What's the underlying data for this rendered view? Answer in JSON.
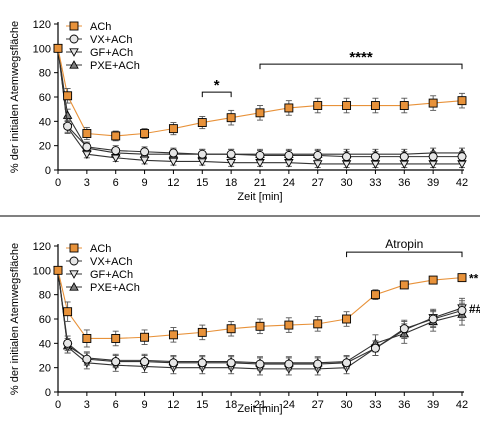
{
  "colors": {
    "ach": "#E8923A",
    "gray_fill": "#E6E6E6",
    "dark_fill": "#808080",
    "error": "#555555"
  },
  "chart_data": [
    {
      "type": "line",
      "xlabel": "Zeit [min]",
      "ylabel": "% der initialen Atemwegsfläche",
      "xlim": [
        0,
        42
      ],
      "ylim": [
        0,
        120
      ],
      "xticks": [
        "0",
        "3",
        "6",
        "9",
        "12",
        "15",
        "18",
        "21",
        "24",
        "27",
        "30",
        "33",
        "36",
        "39",
        "42"
      ],
      "yticks": [
        "0",
        "20",
        "40",
        "60",
        "80",
        "100",
        "120"
      ],
      "legend_position": "top-left",
      "x": [
        0,
        1,
        3,
        6,
        9,
        12,
        15,
        18,
        21,
        24,
        27,
        30,
        33,
        36,
        39,
        42
      ],
      "series": [
        {
          "name": "ACh",
          "marker": "square",
          "values": [
            100,
            61,
            30,
            28,
            30,
            34,
            39,
            43,
            47,
            51,
            53,
            53,
            53,
            53,
            55,
            57
          ],
          "errors": [
            0,
            6,
            5,
            4,
            4,
            5,
            5,
            6,
            6,
            6,
            6,
            6,
            6,
            6,
            6,
            6
          ]
        },
        {
          "name": "VX+ACh",
          "marker": "circle",
          "values": [
            100,
            36,
            19,
            16,
            15,
            14,
            13,
            13,
            12,
            12,
            12,
            11,
            11,
            11,
            11,
            11
          ],
          "errors": [
            0,
            5,
            4,
            4,
            4,
            4,
            4,
            4,
            4,
            4,
            4,
            4,
            4,
            4,
            4,
            4
          ]
        },
        {
          "name": "GF+ACh",
          "marker": "triangle-down",
          "values": [
            100,
            35,
            13,
            10,
            8,
            7,
            7,
            6,
            6,
            6,
            5,
            5,
            5,
            5,
            5,
            5
          ],
          "errors": [
            0,
            5,
            3,
            3,
            3,
            3,
            3,
            3,
            3,
            3,
            3,
            3,
            3,
            3,
            3,
            3
          ]
        },
        {
          "name": "PXE+ACh",
          "marker": "triangle-up",
          "values": [
            100,
            45,
            18,
            14,
            13,
            13,
            13,
            13,
            13,
            13,
            13,
            13,
            13,
            13,
            14,
            14
          ],
          "errors": [
            0,
            5,
            4,
            4,
            4,
            4,
            4,
            4,
            4,
            4,
            4,
            4,
            4,
            4,
            4,
            4
          ]
        }
      ],
      "annotations": [
        {
          "text": "*",
          "x_start": 15,
          "x_end": 18,
          "y": 64
        },
        {
          "text": "****",
          "x_start": 21,
          "x_end": 42,
          "y": 87
        }
      ]
    },
    {
      "type": "line",
      "xlabel": "Zeit [min]",
      "ylabel": "% der initialen Atemwegsfläche",
      "xlim": [
        0,
        42
      ],
      "ylim": [
        0,
        120
      ],
      "xticks": [
        "0",
        "3",
        "6",
        "9",
        "12",
        "15",
        "18",
        "21",
        "24",
        "27",
        "30",
        "33",
        "36",
        "39",
        "42"
      ],
      "yticks": [
        "0",
        "20",
        "40",
        "60",
        "80",
        "100",
        "120"
      ],
      "legend_position": "top-left",
      "x": [
        0,
        1,
        3,
        6,
        9,
        12,
        15,
        18,
        21,
        24,
        27,
        30,
        33,
        36,
        39,
        42
      ],
      "series": [
        {
          "name": "ACh",
          "marker": "square",
          "values": [
            100,
            66,
            44,
            44,
            45,
            47,
            49,
            52,
            54,
            55,
            56,
            60,
            80,
            88,
            92,
            94
          ],
          "errors": [
            0,
            8,
            7,
            6,
            6,
            6,
            6,
            6,
            6,
            6,
            6,
            6,
            4,
            3,
            3,
            2
          ]
        },
        {
          "name": "VX+ACh",
          "marker": "circle",
          "values": [
            100,
            40,
            27,
            25,
            25,
            24,
            24,
            24,
            23,
            23,
            23,
            24,
            36,
            52,
            60,
            67
          ],
          "errors": [
            0,
            6,
            5,
            5,
            5,
            5,
            5,
            5,
            5,
            5,
            5,
            5,
            6,
            7,
            7,
            8
          ]
        },
        {
          "name": "GF+ACh",
          "marker": "triangle-down",
          "values": [
            100,
            37,
            24,
            22,
            21,
            20,
            20,
            20,
            19,
            19,
            19,
            20,
            36,
            51,
            61,
            69
          ],
          "errors": [
            0,
            5,
            5,
            5,
            5,
            5,
            5,
            5,
            5,
            5,
            5,
            5,
            6,
            7,
            7,
            8
          ]
        },
        {
          "name": "PXE+ACh",
          "marker": "triangle-up",
          "values": [
            100,
            38,
            28,
            26,
            26,
            25,
            25,
            25,
            24,
            24,
            24,
            25,
            40,
            48,
            58,
            64
          ],
          "errors": [
            0,
            6,
            5,
            5,
            5,
            5,
            5,
            5,
            5,
            5,
            5,
            5,
            7,
            8,
            8,
            9
          ]
        }
      ],
      "annotations": [
        {
          "text": "Atropin",
          "x_start": 30,
          "x_end": 42,
          "y": 115
        },
        {
          "text": "**",
          "x": 42,
          "y": 94
        },
        {
          "text": "##",
          "x": 42,
          "y": 69
        }
      ]
    }
  ]
}
